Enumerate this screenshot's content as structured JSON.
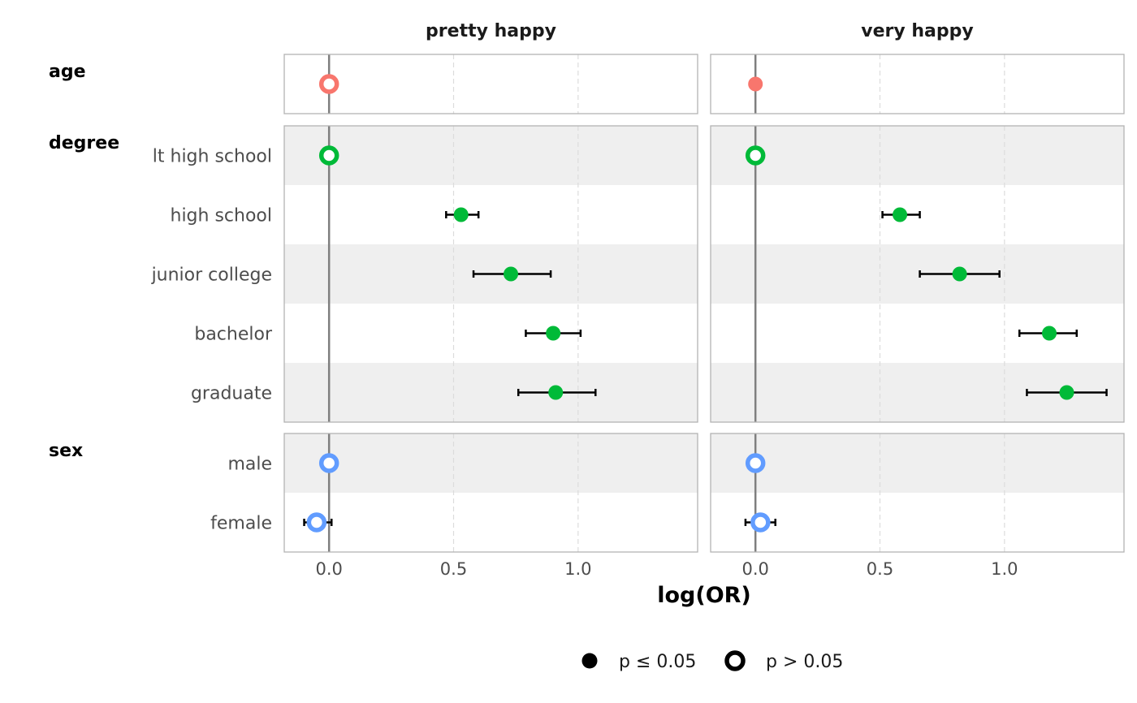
{
  "chart_data": {
    "type": "scatter",
    "subtype": "faceted coefficient plot with error bars",
    "xlabel": "log(OR)",
    "xlim": [
      -0.18,
      1.48
    ],
    "x_ticks": [
      0.0,
      0.5,
      1.0
    ],
    "x_tick_labels": [
      "0.0",
      "0.5",
      "1.0"
    ],
    "grid": "vertical dashed",
    "reference_line": 0,
    "facets": [
      "pretty happy",
      "very happy"
    ],
    "groups": [
      {
        "name": "age",
        "color": "#F8766D",
        "rows": [
          ""
        ]
      },
      {
        "name": "degree",
        "color": "#00BA38",
        "rows": [
          "lt high school",
          "high school",
          "junior college",
          "bachelor",
          "graduate"
        ]
      },
      {
        "name": "sex",
        "color": "#619CFF",
        "rows": [
          "male",
          "female"
        ]
      }
    ],
    "points": [
      {
        "facet": "pretty happy",
        "group": "age",
        "row": "",
        "x": 0.0,
        "low": null,
        "high": null,
        "significant": false
      },
      {
        "facet": "pretty happy",
        "group": "degree",
        "row": "lt high school",
        "x": 0.0,
        "low": null,
        "high": null,
        "significant": false
      },
      {
        "facet": "pretty happy",
        "group": "degree",
        "row": "high school",
        "x": 0.53,
        "low": 0.47,
        "high": 0.6,
        "significant": true
      },
      {
        "facet": "pretty happy",
        "group": "degree",
        "row": "junior college",
        "x": 0.73,
        "low": 0.58,
        "high": 0.89,
        "significant": true
      },
      {
        "facet": "pretty happy",
        "group": "degree",
        "row": "bachelor",
        "x": 0.9,
        "low": 0.79,
        "high": 1.01,
        "significant": true
      },
      {
        "facet": "pretty happy",
        "group": "degree",
        "row": "graduate",
        "x": 0.91,
        "low": 0.76,
        "high": 1.07,
        "significant": true
      },
      {
        "facet": "pretty happy",
        "group": "sex",
        "row": "male",
        "x": 0.0,
        "low": null,
        "high": null,
        "significant": false
      },
      {
        "facet": "pretty happy",
        "group": "sex",
        "row": "female",
        "x": -0.05,
        "low": -0.1,
        "high": 0.01,
        "significant": false
      },
      {
        "facet": "very happy",
        "group": "age",
        "row": "",
        "x": 0.0,
        "low": null,
        "high": null,
        "significant": true
      },
      {
        "facet": "very happy",
        "group": "degree",
        "row": "lt high school",
        "x": 0.0,
        "low": null,
        "high": null,
        "significant": false
      },
      {
        "facet": "very happy",
        "group": "degree",
        "row": "high school",
        "x": 0.58,
        "low": 0.51,
        "high": 0.66,
        "significant": true
      },
      {
        "facet": "very happy",
        "group": "degree",
        "row": "junior college",
        "x": 0.82,
        "low": 0.66,
        "high": 0.98,
        "significant": true
      },
      {
        "facet": "very happy",
        "group": "degree",
        "row": "bachelor",
        "x": 1.18,
        "low": 1.06,
        "high": 1.29,
        "significant": true
      },
      {
        "facet": "very happy",
        "group": "degree",
        "row": "graduate",
        "x": 1.25,
        "low": 1.09,
        "high": 1.41,
        "significant": true
      },
      {
        "facet": "very happy",
        "group": "sex",
        "row": "male",
        "x": 0.0,
        "low": null,
        "high": null,
        "significant": false
      },
      {
        "facet": "very happy",
        "group": "sex",
        "row": "female",
        "x": 0.02,
        "low": -0.04,
        "high": 0.08,
        "significant": false
      }
    ],
    "legend": {
      "placement": "bottom",
      "entries": [
        {
          "label": "p ≤ 0.05",
          "shape": "filled-circle"
        },
        {
          "label": "p > 0.05",
          "shape": "hollow-circle"
        }
      ]
    }
  }
}
